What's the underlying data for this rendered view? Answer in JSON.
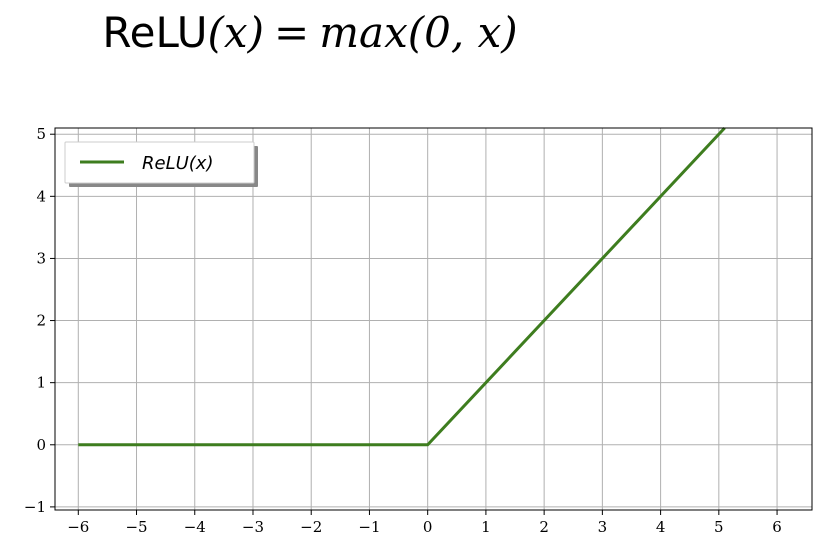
{
  "equation": {
    "lhs_fn": "ReLU",
    "lhs_arg": "(x)",
    "op": "=",
    "rhs": "max(0, x)"
  },
  "chart_data": {
    "type": "line",
    "xlim": [
      -6.4,
      6.6
    ],
    "ylim": [
      -1.05,
      5.1
    ],
    "xticks": [
      -6,
      -5,
      -4,
      -3,
      -2,
      -1,
      0,
      1,
      2,
      3,
      4,
      5,
      6
    ],
    "yticks": [
      -1,
      0,
      1,
      2,
      3,
      4,
      5
    ],
    "xtick_labels": [
      "−6",
      "−5",
      "−4",
      "−3",
      "−2",
      "−1",
      "0",
      "1",
      "2",
      "3",
      "4",
      "5",
      "6"
    ],
    "ytick_labels": [
      "−1",
      "0",
      "1",
      "2",
      "3",
      "4",
      "5"
    ],
    "grid": true,
    "legend_position": "top-left",
    "series": [
      {
        "name": "ReLU(x)",
        "color": "#3e7d1f",
        "x": [
          -6,
          0,
          5.1
        ],
        "y": [
          0,
          0,
          5.1
        ]
      }
    ]
  }
}
